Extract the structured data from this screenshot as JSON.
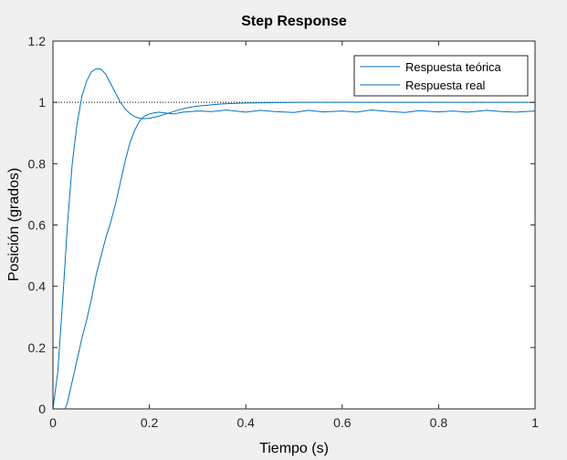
{
  "chart_data": {
    "type": "line",
    "title": "Step Response",
    "xlabel": "Tiempo (s)",
    "ylabel": "Posición (grados)",
    "xlim": [
      0,
      1
    ],
    "ylim": [
      0,
      1.2
    ],
    "xticks": [
      0,
      0.2,
      0.4,
      0.6,
      0.8,
      1
    ],
    "yticks": [
      0,
      0.2,
      0.4,
      0.6,
      0.8,
      1,
      1.2
    ],
    "xtick_labels": [
      "0",
      "0.2",
      "0.4",
      "0.6",
      "0.8",
      "1"
    ],
    "ytick_labels": [
      "0",
      "0.2",
      "0.4",
      "0.6",
      "0.8",
      "1",
      "1.2"
    ],
    "grid": false,
    "legend_position": "top-right",
    "reference_line": {
      "y": 1,
      "style": "dotted",
      "color": "#000000"
    },
    "series": [
      {
        "name": "Respuesta teórica",
        "color": "#0072BD",
        "x": [
          0,
          0.01,
          0.02,
          0.03,
          0.04,
          0.05,
          0.06,
          0.07,
          0.08,
          0.09,
          0.1,
          0.11,
          0.12,
          0.13,
          0.14,
          0.15,
          0.16,
          0.17,
          0.18,
          0.19,
          0.2,
          0.22,
          0.24,
          0.26,
          0.28,
          0.3,
          0.35,
          0.4,
          0.5,
          0.6,
          0.8,
          1.0
        ],
        "y": [
          0,
          0.12,
          0.35,
          0.6,
          0.8,
          0.93,
          1.02,
          1.07,
          1.1,
          1.11,
          1.108,
          1.09,
          1.06,
          1.03,
          1.0,
          0.978,
          0.963,
          0.953,
          0.948,
          0.947,
          0.948,
          0.955,
          0.965,
          0.975,
          0.983,
          0.988,
          0.995,
          0.998,
          1.0,
          1.0,
          1.0,
          1.0
        ]
      },
      {
        "name": "Respuesta real",
        "color": "#0072BD",
        "x": [
          0.025,
          0.03,
          0.04,
          0.05,
          0.06,
          0.07,
          0.08,
          0.09,
          0.1,
          0.11,
          0.12,
          0.13,
          0.14,
          0.15,
          0.16,
          0.17,
          0.18,
          0.19,
          0.2,
          0.21,
          0.22,
          0.23,
          0.25,
          0.27,
          0.3,
          0.33,
          0.36,
          0.4,
          0.43,
          0.46,
          0.5,
          0.53,
          0.56,
          0.6,
          0.63,
          0.66,
          0.7,
          0.73,
          0.76,
          0.8,
          0.83,
          0.86,
          0.9,
          0.93,
          0.96,
          1.0
        ],
        "y": [
          0,
          0.02,
          0.09,
          0.16,
          0.23,
          0.29,
          0.36,
          0.44,
          0.5,
          0.56,
          0.61,
          0.67,
          0.74,
          0.81,
          0.87,
          0.91,
          0.94,
          0.955,
          0.962,
          0.966,
          0.968,
          0.966,
          0.962,
          0.968,
          0.972,
          0.97,
          0.975,
          0.968,
          0.974,
          0.97,
          0.967,
          0.974,
          0.969,
          0.972,
          0.968,
          0.975,
          0.97,
          0.967,
          0.973,
          0.969,
          0.972,
          0.968,
          0.974,
          0.97,
          0.968,
          0.972
        ]
      }
    ]
  }
}
